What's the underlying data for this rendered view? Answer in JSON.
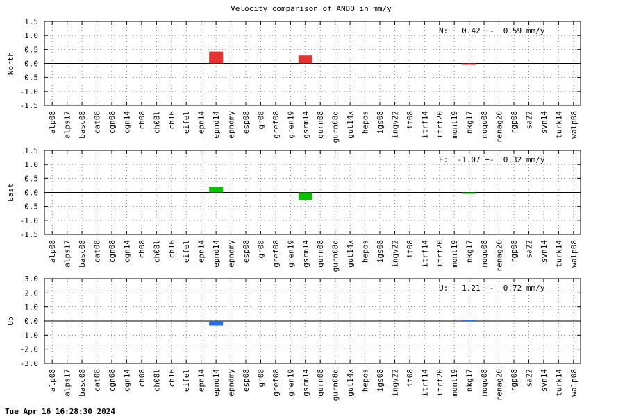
{
  "title": "Velocity comparison of ANDO in mm/y",
  "timestamp": "Tue Apr 16 16:28:30 2024",
  "colors": {
    "north": "#e8322f",
    "east": "#0dbf00",
    "up": "#1f6fe6",
    "grid": "#888888"
  },
  "chart_data": [
    {
      "type": "bar",
      "ylabel": "North",
      "ylim": [
        -1.5,
        1.5
      ],
      "yticks": [
        "1.5",
        "1.0",
        "0.5",
        "0.0",
        "-0.5",
        "-1.0",
        "-1.5"
      ],
      "annotation": "N:   0.42 +-  0.59 mm/y",
      "grid": true,
      "categories": [
        "alp08",
        "alps17",
        "basc08",
        "cat08",
        "cgn08",
        "cgn14",
        "ch08",
        "ch08l",
        "ch16",
        "eifel",
        "epn14",
        "epnd14",
        "epndmy",
        "esp08",
        "gr08",
        "gref08",
        "gren19",
        "gsrm14",
        "gurn08",
        "gurn08d",
        "gut14x",
        "hepos",
        "igs08",
        "ingv22",
        "it08",
        "itrf14",
        "itrf20",
        "mont19",
        "nkg17",
        "noqu08",
        "renag20",
        "rgp08",
        "sa22",
        "svn14",
        "turk14",
        "walp08"
      ],
      "values": [
        null,
        null,
        null,
        null,
        null,
        null,
        null,
        null,
        null,
        null,
        null,
        0.42,
        null,
        null,
        null,
        null,
        null,
        0.28,
        null,
        null,
        null,
        null,
        null,
        null,
        null,
        null,
        null,
        null,
        -0.05,
        null,
        null,
        null,
        null,
        null,
        null,
        null
      ]
    },
    {
      "type": "bar",
      "ylabel": "East",
      "ylim": [
        -1.5,
        1.5
      ],
      "yticks": [
        "1.5",
        "1.0",
        "0.5",
        "0.0",
        "-0.5",
        "-1.0",
        "-1.5"
      ],
      "annotation": "E:  -1.07 +-  0.32 mm/y",
      "grid": true,
      "categories": [
        "alp08",
        "alps17",
        "basc08",
        "cat08",
        "cgn08",
        "cgn14",
        "ch08",
        "ch08l",
        "ch16",
        "eifel",
        "epn14",
        "epnd14",
        "epndmy",
        "esp08",
        "gr08",
        "gref08",
        "gren19",
        "gsrm14",
        "gurn08",
        "gurn08d",
        "gut14x",
        "hepos",
        "igs08",
        "ingv22",
        "it08",
        "itrf14",
        "itrf20",
        "mont19",
        "nkg17",
        "noqu08",
        "renag20",
        "rgp08",
        "sa22",
        "svn14",
        "turk14",
        "walp08"
      ],
      "values": [
        null,
        null,
        null,
        null,
        null,
        null,
        null,
        null,
        null,
        null,
        null,
        0.2,
        null,
        null,
        null,
        null,
        null,
        -0.27,
        null,
        null,
        null,
        null,
        null,
        null,
        null,
        null,
        null,
        null,
        -0.03,
        null,
        null,
        null,
        null,
        null,
        null,
        null
      ]
    },
    {
      "type": "bar",
      "ylabel": "Up",
      "ylim": [
        -3.0,
        3.0
      ],
      "yticks": [
        "3.0",
        "2.0",
        "1.0",
        "0.0",
        "-1.0",
        "-2.0",
        "-3.0"
      ],
      "annotation": "U:   1.21 +-  0.72 mm/y",
      "grid": true,
      "categories": [
        "alp08",
        "alps17",
        "basc08",
        "cat08",
        "cgn08",
        "cgn14",
        "ch08",
        "ch08l",
        "ch16",
        "eifel",
        "epn14",
        "epnd14",
        "epndmy",
        "esp08",
        "gr08",
        "gref08",
        "gren19",
        "gsrm14",
        "gurn08",
        "gurn08d",
        "gut14x",
        "hepos",
        "igs08",
        "ingv22",
        "it08",
        "itrf14",
        "itrf20",
        "mont19",
        "nkg17",
        "noqu08",
        "renag20",
        "rgp08",
        "sa22",
        "svn14",
        "turk14",
        "walp08"
      ],
      "values": [
        null,
        null,
        null,
        null,
        null,
        null,
        null,
        null,
        null,
        null,
        null,
        -0.32,
        null,
        null,
        null,
        null,
        null,
        null,
        null,
        null,
        null,
        null,
        null,
        null,
        null,
        null,
        null,
        null,
        0.06,
        null,
        null,
        null,
        null,
        null,
        null,
        null
      ]
    }
  ]
}
